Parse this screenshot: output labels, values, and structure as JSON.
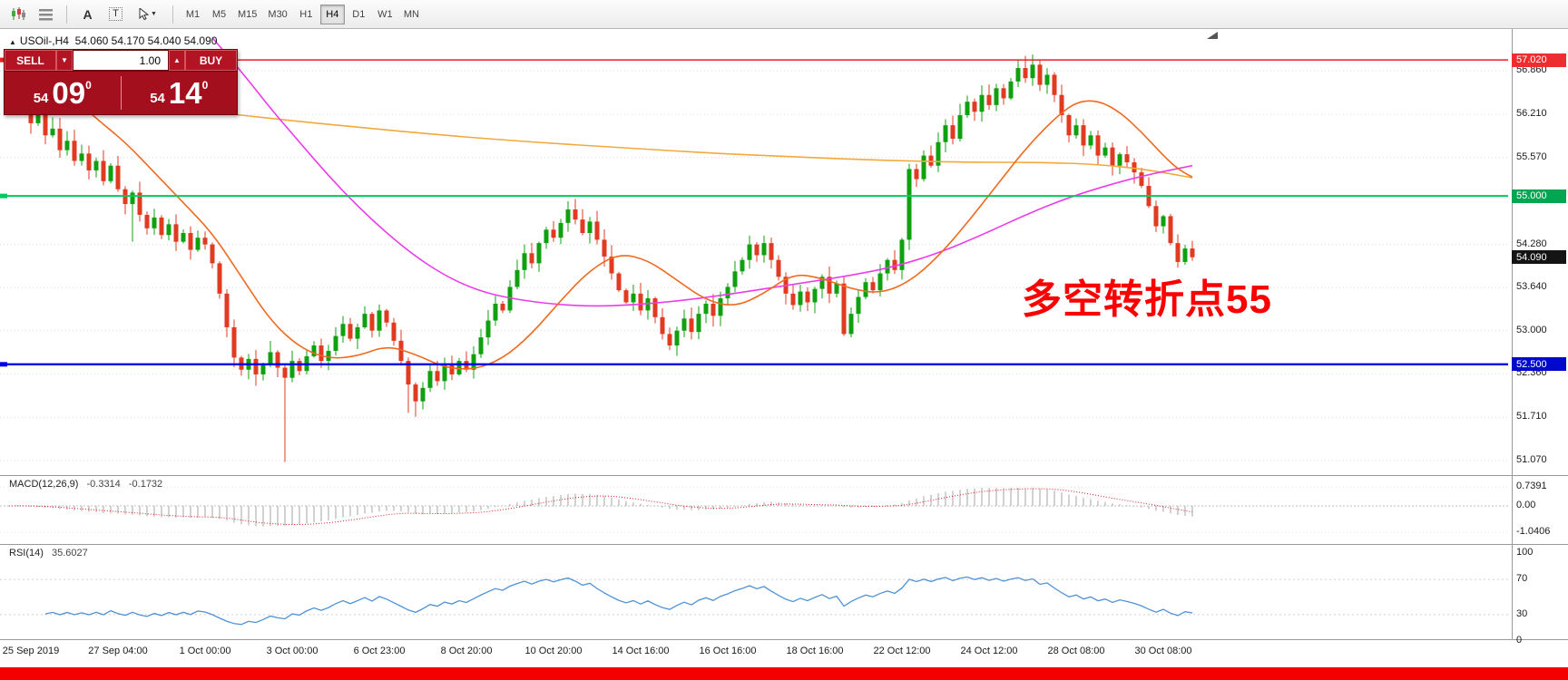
{
  "toolbar": {
    "text_tool": "A",
    "box_tool": "T",
    "icons": {
      "dropdown_caret": "▼",
      "spinner_up": "▲",
      "spinner_down": "▼",
      "collapse_arrow": "▲"
    },
    "timeframes": [
      {
        "label": "M1",
        "active": false
      },
      {
        "label": "M5",
        "active": false
      },
      {
        "label": "M15",
        "active": false
      },
      {
        "label": "M30",
        "active": false
      },
      {
        "label": "H1",
        "active": false
      },
      {
        "label": "H4",
        "active": true
      },
      {
        "label": "D1",
        "active": false
      },
      {
        "label": "W1",
        "active": false
      },
      {
        "label": "MN",
        "active": false
      }
    ]
  },
  "chart_header": {
    "symbol": "USOil-,H4",
    "ohlc": "54.060 54.170 54.040 54.090"
  },
  "trade_panel": {
    "sell_label": "SELL",
    "buy_label": "BUY",
    "volume": "1.00",
    "sell_price": {
      "big": "54",
      "main": "09",
      "sup": "0"
    },
    "buy_price": {
      "big": "54",
      "main": "14",
      "sup": "0"
    }
  },
  "annotation": {
    "text": "多空转折点55",
    "color": "#fb0000"
  },
  "hlines": [
    {
      "price": 57.02,
      "color": "#e62222",
      "width": 1.4
    },
    {
      "price": 55.0,
      "color": "#00ca60",
      "width": 2
    },
    {
      "price": 52.5,
      "color": "#0000e6",
      "width": 2.4
    }
  ],
  "price_scale": {
    "ticks": [
      {
        "label": "56.860",
        "price": 56.86
      },
      {
        "label": "56.210",
        "price": 56.21
      },
      {
        "label": "55.570",
        "price": 55.57
      },
      {
        "label": "54.280",
        "price": 54.28
      },
      {
        "label": "53.640",
        "price": 53.64
      },
      {
        "label": "53.000",
        "price": 53.0
      },
      {
        "label": "52.360",
        "price": 52.36
      },
      {
        "label": "51.710",
        "price": 51.71
      },
      {
        "label": "51.070",
        "price": 51.07
      }
    ],
    "badges": [
      {
        "label": "57.020",
        "price": 57.02,
        "color": "#ee2e2e",
        "type": "hline"
      },
      {
        "label": "55.000",
        "price": 55.0,
        "color": "#00a651",
        "type": "hline"
      },
      {
        "label": "54.090",
        "price": 54.09,
        "color": "#141414",
        "type": "last-price"
      },
      {
        "label": "52.500",
        "price": 52.5,
        "color": "#0008cc",
        "type": "hline"
      }
    ]
  },
  "time_axis": {
    "labels": [
      {
        "text": "25 Sep 2019",
        "i": 3
      },
      {
        "text": "27 Sep 04:00",
        "i": 15
      },
      {
        "text": "1 Oct 00:00",
        "i": 27
      },
      {
        "text": "3 Oct 00:00",
        "i": 39
      },
      {
        "text": "6 Oct 23:00",
        "i": 51
      },
      {
        "text": "8 Oct 20:00",
        "i": 63
      },
      {
        "text": "10 Oct 20:00",
        "i": 75
      },
      {
        "text": "14 Oct 16:00",
        "i": 87
      },
      {
        "text": "16 Oct 16:00",
        "i": 99
      },
      {
        "text": "18 Oct 16:00",
        "i": 111
      },
      {
        "text": "22 Oct 12:00",
        "i": 123
      },
      {
        "text": "24 Oct 12:00",
        "i": 135
      },
      {
        "text": "28 Oct 08:00",
        "i": 147
      },
      {
        "text": "30 Oct 08:00",
        "i": 159
      }
    ]
  },
  "macd_panel": {
    "label": "MACD(12,26,9)",
    "value1": "-0.3314",
    "value2": "-0.1732",
    "scale": [
      {
        "label": "0.7391",
        "v": 0.7391
      },
      {
        "label": "0.00",
        "v": 0
      },
      {
        "label": "-1.0406",
        "v": -1.0406
      }
    ]
  },
  "rsi_panel": {
    "label": "RSI(14)",
    "value": "35.6027",
    "scale": [
      {
        "label": "100",
        "v": 100
      },
      {
        "label": "70",
        "v": 70
      },
      {
        "label": "30",
        "v": 30
      },
      {
        "label": "0",
        "v": 0
      }
    ],
    "levels": [
      70,
      30
    ]
  },
  "chart_data": {
    "type": "candlestick",
    "symbol": "USOil",
    "timeframe": "H4",
    "ohlc_display": {
      "open": 54.06,
      "high": 54.17,
      "low": 54.04,
      "close": 54.09
    },
    "ylim_visible": [
      51.07,
      57.48
    ],
    "first_open": 56.6,
    "up_color": "#0fa00f",
    "down_color": "#e03a20",
    "closes": [
      56.45,
      56.72,
      56.3,
      56.08,
      56.25,
      55.9,
      56.0,
      55.68,
      55.82,
      55.52,
      55.63,
      55.38,
      55.52,
      55.22,
      55.45,
      55.1,
      54.88,
      55.05,
      54.72,
      54.52,
      54.68,
      54.42,
      54.58,
      54.32,
      54.45,
      54.2,
      54.38,
      54.28,
      54.0,
      53.55,
      53.05,
      52.6,
      52.42,
      52.58,
      52.35,
      52.5,
      52.68,
      52.45,
      52.3,
      52.55,
      52.4,
      52.62,
      52.78,
      52.55,
      52.7,
      52.92,
      53.1,
      52.88,
      53.05,
      53.25,
      53.0,
      53.3,
      53.12,
      52.85,
      52.55,
      52.2,
      51.95,
      52.15,
      52.4,
      52.25,
      52.5,
      52.35,
      52.55,
      52.42,
      52.65,
      52.9,
      53.15,
      53.4,
      53.3,
      53.65,
      53.9,
      54.15,
      54.0,
      54.3,
      54.5,
      54.38,
      54.6,
      54.8,
      54.65,
      54.45,
      54.62,
      54.35,
      54.1,
      53.85,
      53.6,
      53.42,
      53.55,
      53.3,
      53.48,
      53.2,
      52.95,
      52.78,
      53.0,
      53.18,
      52.98,
      53.25,
      53.4,
      53.22,
      53.48,
      53.65,
      53.88,
      54.05,
      54.28,
      54.12,
      54.3,
      54.05,
      53.8,
      53.55,
      53.38,
      53.58,
      53.42,
      53.62,
      53.8,
      53.55,
      53.7,
      52.95,
      53.25,
      53.5,
      53.72,
      53.6,
      53.85,
      54.05,
      53.9,
      54.35,
      55.4,
      55.25,
      55.6,
      55.45,
      55.8,
      56.05,
      55.85,
      56.2,
      56.4,
      56.25,
      56.5,
      56.35,
      56.6,
      56.45,
      56.7,
      56.9,
      56.75,
      56.95,
      56.65,
      56.8,
      56.5,
      56.2,
      55.9,
      56.05,
      55.75,
      55.9,
      55.6,
      55.72,
      55.45,
      55.62,
      55.5,
      55.35,
      55.15,
      54.85,
      54.55,
      54.7,
      54.3,
      54.02,
      54.22,
      54.09
    ],
    "wick_overrides": {
      "17": {
        "low": 54.32
      },
      "38": {
        "low": 51.05
      },
      "55": {
        "low": 51.78
      },
      "56": {
        "low": 51.72
      },
      "139": {
        "high": 57.02
      },
      "140": {
        "high": 57.08
      },
      "141": {
        "high": 57.1
      }
    },
    "ma_lines": [
      {
        "name": "ma-slow",
        "color": "#f2a93c",
        "points": [
          [
            0,
            56.58
          ],
          [
            12,
            56.45
          ],
          [
            24,
            56.3
          ],
          [
            36,
            56.15
          ],
          [
            48,
            56.02
          ],
          [
            60,
            55.9
          ],
          [
            72,
            55.8
          ],
          [
            84,
            55.72
          ],
          [
            96,
            55.64
          ],
          [
            108,
            55.58
          ],
          [
            120,
            55.53
          ],
          [
            132,
            55.5
          ],
          [
            142,
            55.5
          ],
          [
            150,
            55.47
          ],
          [
            156,
            55.4
          ],
          [
            160,
            55.33
          ],
          [
            163,
            55.27
          ]
        ]
      },
      {
        "name": "ma-mid",
        "color": "#ea3dea",
        "points": [
          [
            28,
            57.35
          ],
          [
            32,
            56.85
          ],
          [
            36,
            56.3
          ],
          [
            40,
            55.8
          ],
          [
            44,
            55.3
          ],
          [
            48,
            54.85
          ],
          [
            52,
            54.45
          ],
          [
            56,
            54.1
          ],
          [
            60,
            53.82
          ],
          [
            64,
            53.62
          ],
          [
            68,
            53.5
          ],
          [
            74,
            53.4
          ],
          [
            80,
            53.36
          ],
          [
            86,
            53.38
          ],
          [
            92,
            53.44
          ],
          [
            98,
            53.52
          ],
          [
            104,
            53.62
          ],
          [
            110,
            53.72
          ],
          [
            116,
            53.82
          ],
          [
            122,
            53.95
          ],
          [
            128,
            54.15
          ],
          [
            134,
            54.42
          ],
          [
            140,
            54.72
          ],
          [
            146,
            54.98
          ],
          [
            152,
            55.18
          ],
          [
            157,
            55.32
          ],
          [
            163,
            55.45
          ]
        ]
      },
      {
        "name": "ma-fast",
        "color": "#ef6a1f",
        "points": [
          [
            4,
            57.1
          ],
          [
            8,
            56.55
          ],
          [
            12,
            56.15
          ],
          [
            16,
            55.8
          ],
          [
            20,
            55.35
          ],
          [
            24,
            54.9
          ],
          [
            28,
            54.45
          ],
          [
            32,
            53.8
          ],
          [
            36,
            53.15
          ],
          [
            40,
            52.75
          ],
          [
            44,
            52.58
          ],
          [
            48,
            52.62
          ],
          [
            52,
            52.78
          ],
          [
            56,
            52.65
          ],
          [
            60,
            52.45
          ],
          [
            64,
            52.42
          ],
          [
            68,
            52.58
          ],
          [
            72,
            52.95
          ],
          [
            76,
            53.45
          ],
          [
            80,
            53.9
          ],
          [
            84,
            54.15
          ],
          [
            88,
            54.05
          ],
          [
            92,
            53.75
          ],
          [
            96,
            53.45
          ],
          [
            100,
            53.35
          ],
          [
            104,
            53.55
          ],
          [
            108,
            53.85
          ],
          [
            112,
            53.78
          ],
          [
            116,
            53.62
          ],
          [
            120,
            53.55
          ],
          [
            124,
            53.72
          ],
          [
            128,
            54.1
          ],
          [
            132,
            54.6
          ],
          [
            136,
            55.15
          ],
          [
            140,
            55.7
          ],
          [
            144,
            56.15
          ],
          [
            147,
            56.4
          ],
          [
            150,
            56.42
          ],
          [
            153,
            56.25
          ],
          [
            156,
            55.95
          ],
          [
            159,
            55.6
          ],
          [
            161,
            55.4
          ],
          [
            163,
            55.28
          ]
        ]
      }
    ],
    "indicators": {
      "macd": {
        "fast": 12,
        "slow": 26,
        "signal": 9
      },
      "rsi": {
        "period": 14
      }
    }
  }
}
